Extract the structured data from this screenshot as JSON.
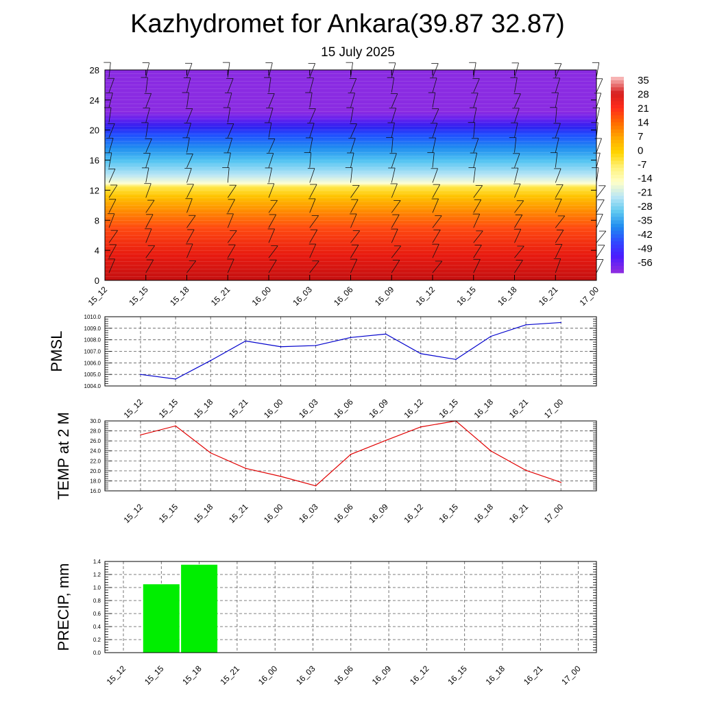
{
  "title": "Kazhydromet for Ankara(39.87 32.87)",
  "subtitle": "15 July 2025",
  "colors": {
    "pmsl_line": "#0000cc",
    "temp_line": "#e00000",
    "precip_bar": "#00ee00"
  },
  "chart_data": [
    {
      "type": "heatmap",
      "name": "vertical temperature cross-section with wind barbs",
      "x_categories": [
        "15_12",
        "15_15",
        "15_18",
        "15_21",
        "16_00",
        "16_03",
        "16_06",
        "16_09",
        "16_12",
        "16_15",
        "16_18",
        "16_21",
        "17_00"
      ],
      "ylim": [
        0,
        28
      ],
      "yticks": [
        0,
        4,
        8,
        12,
        16,
        20,
        24,
        28
      ],
      "colorbar": {
        "labels": [
          "35",
          "28",
          "21",
          "14",
          "7",
          "0",
          "-7",
          "-14",
          "-21",
          "-28",
          "-35",
          "-42",
          "-49",
          "-56"
        ],
        "colors": [
          "#f7b3b3",
          "#d61f1f",
          "#ff2d1a",
          "#ff6a00",
          "#ffa800",
          "#ffd400",
          "#fff27a",
          "#ffffc8",
          "#b9e6f5",
          "#5fc8f0",
          "#1f8cf0",
          "#2f4bff",
          "#4a1cff",
          "#8a2be2"
        ]
      },
      "bands_description_by_height": [
        {
          "from": 0,
          "to": 6,
          "temp": 28
        },
        {
          "from": 6,
          "to": 12,
          "temp": 14
        },
        {
          "from": 12,
          "to": 13,
          "temp": -10
        },
        {
          "from": 13,
          "to": 19,
          "temp": -30
        },
        {
          "from": 19,
          "to": 22,
          "temp": -50
        },
        {
          "from": 22,
          "to": 28,
          "temp": -56
        }
      ],
      "grid": false
    },
    {
      "type": "line",
      "ylabel": "PMSL",
      "categories": [
        "15_12",
        "15_15",
        "15_18",
        "15_21",
        "16_00",
        "16_03",
        "16_06",
        "16_09",
        "16_12",
        "16_15",
        "16_18",
        "16_21",
        "17_00"
      ],
      "values": [
        1005.0,
        1004.6,
        1006.2,
        1007.9,
        1007.4,
        1007.5,
        1008.2,
        1008.5,
        1006.8,
        1006.3,
        1008.3,
        1009.3,
        1009.5
      ],
      "ylim": [
        1004.0,
        1010.0
      ],
      "yticks": [
        "1004.0",
        "1005.0",
        "1006.0",
        "1007.0",
        "1008.0",
        "1009.0",
        "1010.0"
      ],
      "grid": true
    },
    {
      "type": "line",
      "ylabel": "TEMP at 2 M",
      "categories": [
        "15_12",
        "15_15",
        "15_18",
        "15_21",
        "16_00",
        "16_03",
        "16_06",
        "16_09",
        "16_12",
        "16_15",
        "16_18",
        "16_21",
        "17_00"
      ],
      "values": [
        27.2,
        29.0,
        23.6,
        20.5,
        18.9,
        17.0,
        23.3,
        26.1,
        28.8,
        30.0,
        24.0,
        20.1,
        17.7
      ],
      "ylim": [
        16.0,
        30.0
      ],
      "yticks": [
        "16.0",
        "18.0",
        "20.0",
        "22.0",
        "24.0",
        "26.0",
        "28.0",
        "30.0"
      ],
      "grid": true
    },
    {
      "type": "bar",
      "ylabel": "PRECIP, mm",
      "categories": [
        "15_12",
        "15_15",
        "15_18",
        "15_21",
        "16_00",
        "16_03",
        "16_06",
        "16_09",
        "16_12",
        "16_15",
        "16_18",
        "16_21",
        "17_00"
      ],
      "values": [
        0,
        1.05,
        1.35,
        0,
        0,
        0,
        0,
        0,
        0,
        0,
        0,
        0,
        0
      ],
      "ylim": [
        0,
        1.4
      ],
      "yticks": [
        "0.0",
        "0.2",
        "0.4",
        "0.6",
        "0.8",
        "1.0",
        "1.2",
        "1.4"
      ],
      "grid": true
    }
  ]
}
